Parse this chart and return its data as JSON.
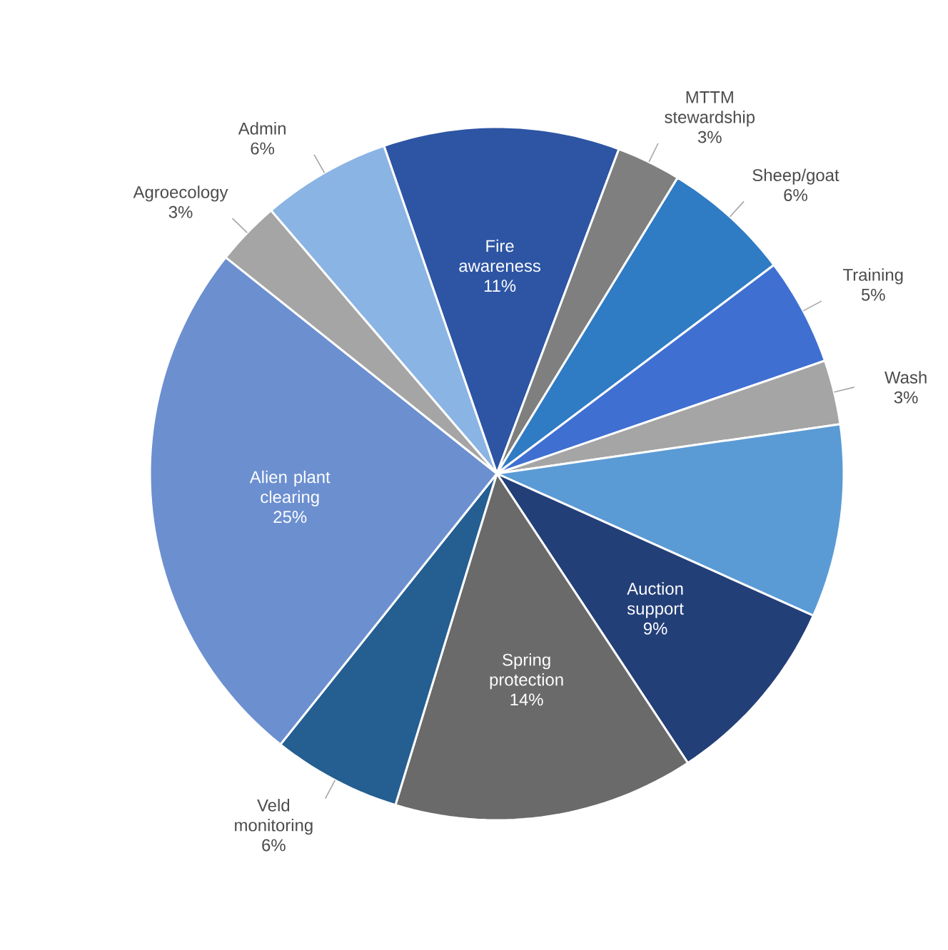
{
  "chart_data": {
    "type": "pie",
    "categories": [
      "Fire awareness",
      "MTTM stewardship",
      "Sheep/goat",
      "Training",
      "Wash",
      null,
      "Auction support",
      "Spring protection",
      "Veld monitoring",
      "Alien plant clearing",
      "Agroecology",
      "Admin"
    ],
    "values": [
      11,
      3,
      6,
      5,
      3,
      9,
      9,
      14,
      6,
      25,
      3,
      6
    ],
    "value_labels": [
      "11%",
      "3%",
      "6%",
      "5%",
      "3%",
      null,
      "9%",
      "14%",
      "6%",
      "25%",
      "3%",
      "6%"
    ],
    "colors": [
      "#2e55a4",
      "#7f7f7f",
      "#2f7bc4",
      "#3f6fd1",
      "#a5a5a5",
      "#5b9bd5",
      "#233f78",
      "#6a6a6a",
      "#255e91",
      "#6c8fd0",
      "#a5a5a5",
      "#8ab4e3"
    ]
  }
}
